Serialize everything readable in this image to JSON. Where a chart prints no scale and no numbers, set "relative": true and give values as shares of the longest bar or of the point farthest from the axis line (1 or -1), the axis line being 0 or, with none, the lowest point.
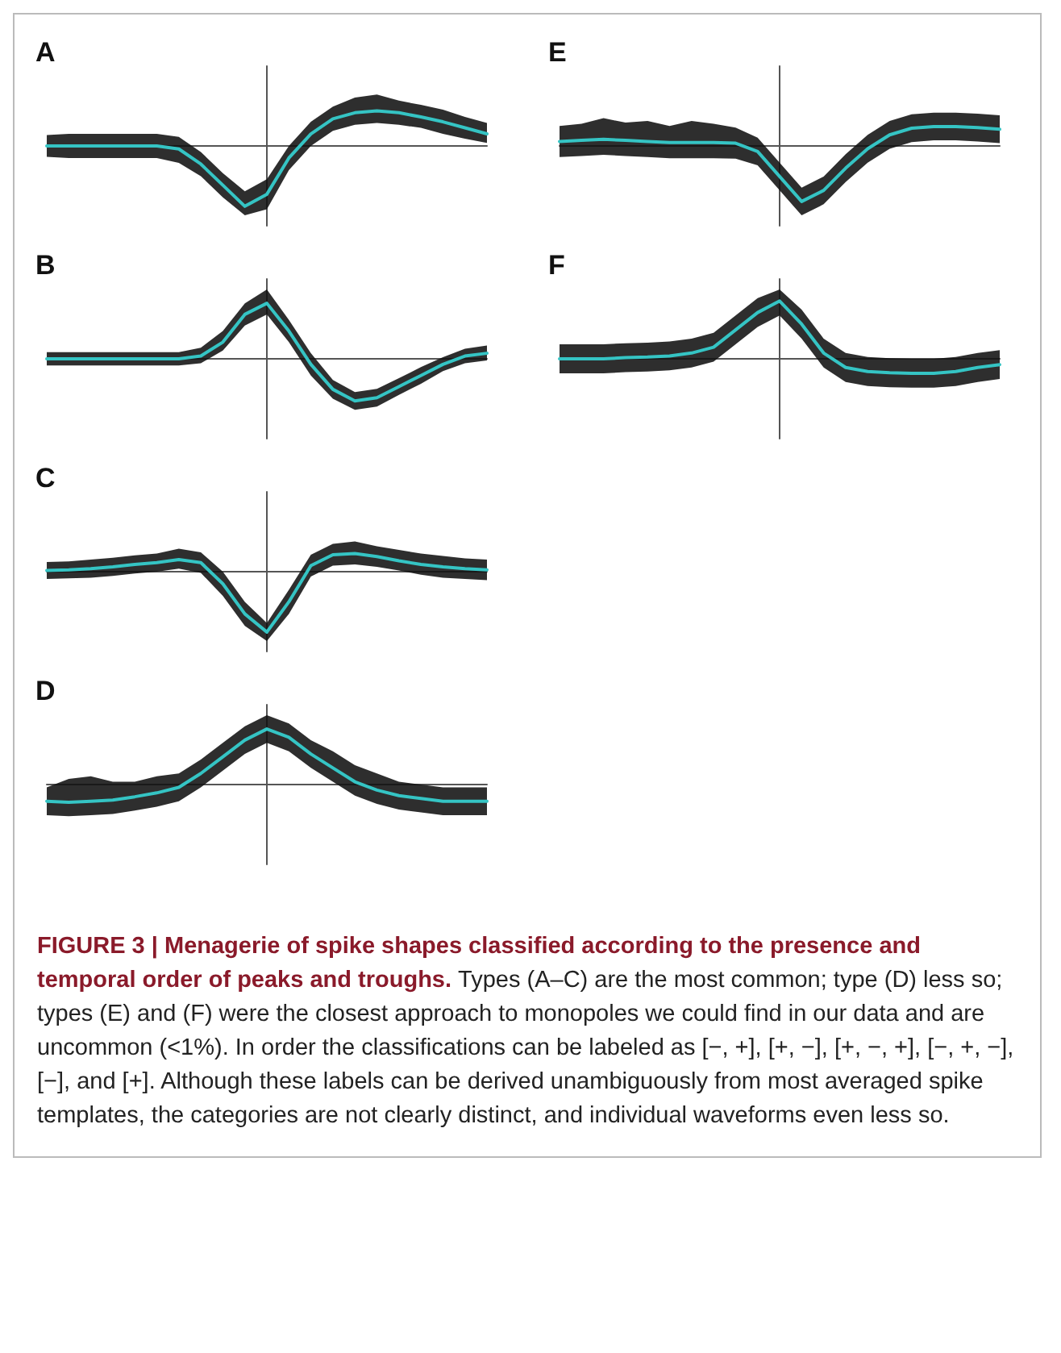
{
  "chart_data": [
    {
      "type": "line",
      "title": "A",
      "relative": true,
      "categories": [
        null,
        null,
        null,
        null,
        null,
        null,
        null,
        null,
        null,
        null,
        null,
        null,
        null,
        null,
        null,
        null,
        null,
        null,
        null,
        null,
        null
      ],
      "series": [
        {
          "color": "#35c4c4",
          "values": [
            0,
            0,
            0,
            0,
            0,
            0,
            -0.05,
            -0.3,
            -0.65,
            -1,
            -0.8,
            -0.2,
            0.2,
            0.45,
            0.55,
            0.58,
            0.55,
            0.48,
            0.4,
            0.3,
            0.2
          ],
          "lower": [
            -0.18,
            -0.2,
            -0.2,
            -0.2,
            -0.2,
            -0.2,
            -0.28,
            -0.5,
            -0.85,
            -1.15,
            -1.05,
            -0.4,
            0,
            0.25,
            0.35,
            0.38,
            0.35,
            0.3,
            0.2,
            0.12,
            0.05
          ],
          "upper": [
            0.18,
            0.2,
            0.2,
            0.2,
            0.2,
            0.2,
            0.15,
            -0.1,
            -0.45,
            -0.75,
            -0.55,
            0,
            0.4,
            0.65,
            0.8,
            0.85,
            0.75,
            0.68,
            0.6,
            0.48,
            0.38
          ]
        }
      ],
      "annotations": [
        "FIGURE 3 | Menagerie of spike shapes classified according to the presence and temporal order of peaks and troughs.",
        "Types (A–C) are the most common; type (D) less so; types (E) and (F) were the closest approach to monopoles we could find in our data and are uncommon (<1%). In order the classifications can be labeled as [−, +], [+, −], [+, −, +], [−, +, −], [−], and [+]. Although these labels can be derived unambiguously from most averaged spike templates, the categories are not clearly distinct, and individual waveforms even less so."
      ]
    },
    {
      "type": "line",
      "title": "B",
      "relative": true,
      "categories": [
        null,
        null,
        null,
        null,
        null,
        null,
        null,
        null,
        null,
        null,
        null,
        null,
        null,
        null,
        null,
        null,
        null,
        null,
        null,
        null,
        null
      ],
      "series": [
        {
          "color": "#35c4c4",
          "values": [
            0,
            0,
            0,
            0,
            0,
            0,
            0,
            0.05,
            0.3,
            0.8,
            1,
            0.5,
            -0.1,
            -0.55,
            -0.76,
            -0.7,
            -0.5,
            -0.3,
            -0.1,
            0.05,
            0.1
          ],
          "lower": [
            -0.12,
            -0.12,
            -0.12,
            -0.12,
            -0.12,
            -0.12,
            -0.12,
            -0.08,
            0.15,
            0.6,
            0.8,
            0.3,
            -0.3,
            -0.72,
            -0.92,
            -0.86,
            -0.65,
            -0.45,
            -0.22,
            -0.08,
            -0.03
          ],
          "upper": [
            0.12,
            0.12,
            0.12,
            0.12,
            0.12,
            0.12,
            0.12,
            0.2,
            0.5,
            1,
            1.25,
            0.7,
            0.1,
            -0.38,
            -0.6,
            -0.54,
            -0.35,
            -0.15,
            0.03,
            0.18,
            0.24
          ]
        }
      ]
    },
    {
      "type": "line",
      "title": "C",
      "relative": true,
      "categories": [
        null,
        null,
        null,
        null,
        null,
        null,
        null,
        null,
        null,
        null,
        null,
        null,
        null,
        null,
        null,
        null,
        null,
        null,
        null,
        null,
        null
      ],
      "series": [
        {
          "color": "#35c4c4",
          "values": [
            0.02,
            0.03,
            0.05,
            0.08,
            0.12,
            0.15,
            0.2,
            0.15,
            -0.2,
            -0.7,
            -1,
            -0.5,
            0.1,
            0.28,
            0.3,
            0.25,
            0.18,
            0.12,
            0.08,
            0.05,
            0.03
          ],
          "lower": [
            -0.12,
            -0.11,
            -0.1,
            -0.07,
            -0.03,
            0,
            0.05,
            -0.02,
            -0.4,
            -0.9,
            -1.15,
            -0.7,
            -0.08,
            0.1,
            0.12,
            0.08,
            0.02,
            -0.05,
            -0.1,
            -0.12,
            -0.14
          ],
          "upper": [
            0.16,
            0.17,
            0.2,
            0.23,
            0.27,
            0.3,
            0.38,
            0.32,
            0,
            -0.5,
            -0.85,
            -0.3,
            0.28,
            0.46,
            0.5,
            0.42,
            0.36,
            0.3,
            0.26,
            0.22,
            0.2
          ]
        }
      ]
    },
    {
      "type": "line",
      "title": "D",
      "relative": true,
      "categories": [
        null,
        null,
        null,
        null,
        null,
        null,
        null,
        null,
        null,
        null,
        null,
        null,
        null,
        null,
        null,
        null,
        null,
        null,
        null,
        null,
        null
      ],
      "series": [
        {
          "color": "#35c4c4",
          "values": [
            -0.3,
            -0.32,
            -0.3,
            -0.28,
            -0.22,
            -0.15,
            -0.05,
            0.2,
            0.5,
            0.8,
            1,
            0.85,
            0.55,
            0.3,
            0.05,
            -0.1,
            -0.2,
            -0.25,
            -0.3,
            -0.3,
            -0.3
          ],
          "lower": [
            -0.55,
            -0.57,
            -0.55,
            -0.53,
            -0.47,
            -0.4,
            -0.3,
            -0.05,
            0.25,
            0.55,
            0.75,
            0.6,
            0.3,
            0.05,
            -0.2,
            -0.35,
            -0.45,
            -0.5,
            -0.55,
            -0.55,
            -0.55
          ],
          "upper": [
            -0.05,
            0.1,
            0.15,
            0.05,
            0.05,
            0.15,
            0.2,
            0.45,
            0.75,
            1.05,
            1.25,
            1.1,
            0.8,
            0.6,
            0.35,
            0.2,
            0.05,
            0,
            -0.05,
            -0.05,
            -0.05
          ]
        }
      ]
    },
    {
      "type": "line",
      "title": "E",
      "relative": true,
      "categories": [
        null,
        null,
        null,
        null,
        null,
        null,
        null,
        null,
        null,
        null,
        null,
        null,
        null,
        null,
        null,
        null,
        null,
        null,
        null,
        null,
        null
      ],
      "series": [
        {
          "color": "#35c4c4",
          "values": [
            0.08,
            0.1,
            0.12,
            0.1,
            0.08,
            0.06,
            0.06,
            0.06,
            0.05,
            -0.1,
            -0.55,
            -1,
            -0.8,
            -0.4,
            -0.05,
            0.2,
            0.32,
            0.35,
            0.35,
            0.33,
            0.3
          ],
          "lower": [
            -0.2,
            -0.18,
            -0.16,
            -0.18,
            -0.2,
            -0.22,
            -0.22,
            -0.22,
            -0.23,
            -0.35,
            -0.8,
            -1.25,
            -1.05,
            -0.65,
            -0.3,
            -0.05,
            0.07,
            0.1,
            0.1,
            0.08,
            0.05
          ],
          "upper": [
            0.36,
            0.4,
            0.5,
            0.42,
            0.45,
            0.36,
            0.45,
            0.4,
            0.33,
            0.15,
            -0.3,
            -0.75,
            -0.55,
            -0.15,
            0.2,
            0.45,
            0.57,
            0.6,
            0.6,
            0.58,
            0.55
          ]
        }
      ]
    },
    {
      "type": "line",
      "title": "F",
      "relative": true,
      "categories": [
        null,
        null,
        null,
        null,
        null,
        null,
        null,
        null,
        null,
        null,
        null,
        null,
        null,
        null,
        null,
        null,
        null,
        null,
        null,
        null,
        null
      ],
      "series": [
        {
          "color": "#35c4c4",
          "values": [
            0,
            0,
            0,
            0.02,
            0.03,
            0.05,
            0.1,
            0.2,
            0.5,
            0.8,
            1,
            0.6,
            0.1,
            -0.15,
            -0.22,
            -0.24,
            -0.25,
            -0.25,
            -0.22,
            -0.15,
            -0.1
          ],
          "lower": [
            -0.25,
            -0.25,
            -0.25,
            -0.23,
            -0.22,
            -0.2,
            -0.15,
            -0.05,
            0.25,
            0.55,
            0.75,
            0.35,
            -0.15,
            -0.4,
            -0.47,
            -0.49,
            -0.5,
            -0.5,
            -0.47,
            -0.4,
            -0.35
          ],
          "upper": [
            0.25,
            0.25,
            0.25,
            0.27,
            0.28,
            0.3,
            0.35,
            0.45,
            0.75,
            1.05,
            1.2,
            0.85,
            0.35,
            0.1,
            0.03,
            0.01,
            0,
            0,
            0.03,
            0.1,
            0.15
          ]
        }
      ]
    }
  ]
}
